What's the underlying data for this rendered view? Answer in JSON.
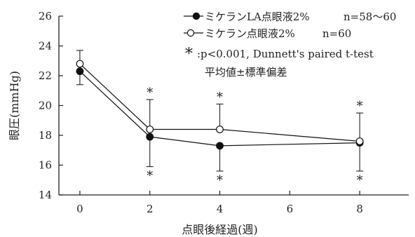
{
  "chart_data": {
    "type": "line",
    "xlabel": "点眼後経過(週)",
    "ylabel": "眼圧(mmHg)",
    "xlim": [
      -0.6,
      9.4
    ],
    "ylim": [
      14,
      26
    ],
    "xticks": [
      0,
      2,
      4,
      6,
      8
    ],
    "yticks": [
      14,
      16,
      18,
      20,
      22,
      24,
      26
    ],
    "x_tick_labels": [
      "0",
      "2",
      "4",
      "6",
      "8"
    ],
    "y_tick_labels": [
      "14",
      "16",
      "18",
      "20",
      "22",
      "24",
      "26"
    ],
    "grid": false,
    "legend_position": "top-right",
    "series": [
      {
        "name": "ミケランLA点眼液2%",
        "n_label": "n=58〜60",
        "marker": "filled-circle",
        "color": "#111111",
        "x": [
          0,
          2,
          4,
          8
        ],
        "y": [
          22.3,
          17.9,
          17.3,
          17.5
        ],
        "error_down": [
          0.9,
          2.0,
          1.7,
          1.9
        ],
        "error_dir": "down"
      },
      {
        "name": "ミケラン点眼液2%",
        "n_label": "n=60",
        "marker": "open-circle",
        "color": "#111111",
        "x": [
          0,
          2,
          4,
          8
        ],
        "y": [
          22.8,
          18.4,
          18.4,
          17.6
        ],
        "error_up": [
          0.9,
          2.0,
          1.7,
          1.9
        ],
        "error_dir": "up"
      }
    ],
    "significance_marks": [
      {
        "x": 2,
        "pos": "above",
        "text": "*"
      },
      {
        "x": 2,
        "pos": "below",
        "text": "*"
      },
      {
        "x": 4,
        "pos": "above",
        "text": "*"
      },
      {
        "x": 4,
        "pos": "below",
        "text": "*"
      },
      {
        "x": 8,
        "pos": "above",
        "text": "*"
      },
      {
        "x": 8,
        "pos": "below",
        "text": "*"
      }
    ],
    "annotation": {
      "symbol": "*",
      "line1": ":p<0.001, Dunnett's paired t-test",
      "line2": "平均値±標準偏差"
    }
  }
}
